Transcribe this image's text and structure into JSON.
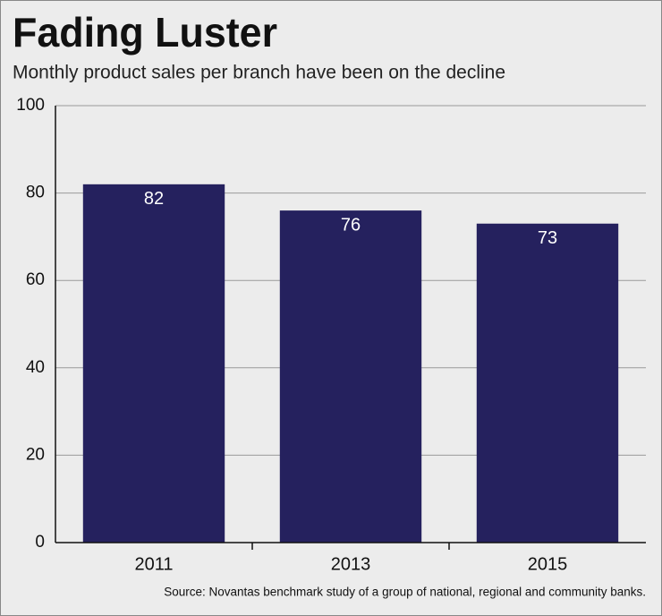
{
  "chart_data": {
    "type": "bar",
    "title": "Fading Luster",
    "subtitle": "Monthly product sales per branch have been on the decline",
    "categories": [
      "2011",
      "2013",
      "2015"
    ],
    "values": [
      82,
      76,
      73
    ],
    "color": "#25215e",
    "ylim": [
      0,
      100
    ],
    "yticks": [
      0,
      20,
      40,
      60,
      80,
      100
    ],
    "grid": true,
    "source": "Source: Novantas benchmark study of a group of national, regional and community banks."
  }
}
